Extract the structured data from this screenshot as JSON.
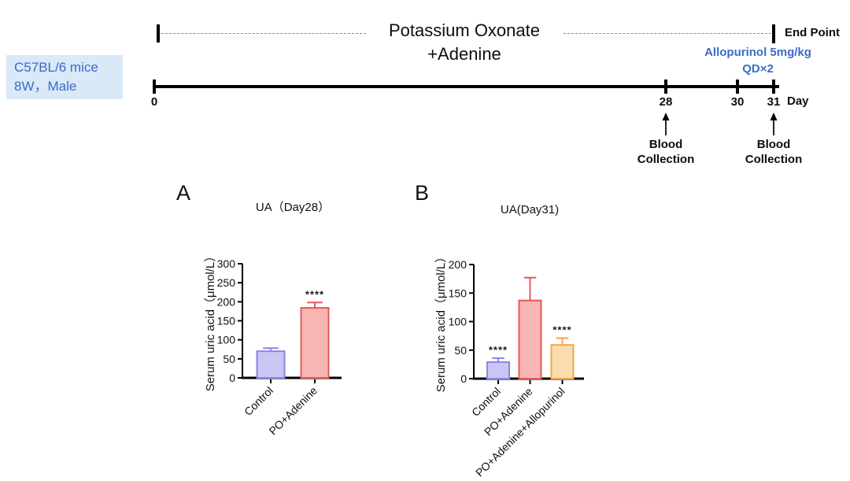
{
  "colors": {
    "accent_blue": "#3a6cc8",
    "box_bg": "#d9e9f8",
    "timeline_black": "#000000",
    "bar_purple_fill": "#c9c6f4",
    "bar_purple_stroke": "#8b86e3",
    "bar_pink_fill": "#f7b5b3",
    "bar_pink_stroke": "#e4585a",
    "bar_orange_fill": "#fbdcae",
    "bar_orange_stroke": "#f2a54c"
  },
  "timeline": {
    "subject_box": {
      "line1": "C57BL/6 mice",
      "line2": "8W，Male"
    },
    "treatment_line1": "Potassium Oxonate",
    "treatment_line2": "+Adenine",
    "end_point_label": "End Point",
    "allopurinol_line1": "Allopurinol 5mg/kg",
    "allopurinol_line2": "QD×2",
    "day_axis_label": "Day",
    "ticks": [
      {
        "day": "0"
      },
      {
        "day": "28"
      },
      {
        "day": "30"
      },
      {
        "day": "31"
      }
    ],
    "blood_collections": [
      {
        "line1": "Blood",
        "line2": "Collection",
        "at_day": "28"
      },
      {
        "line1": "Blood",
        "line2": "Collection",
        "at_day": "31"
      }
    ]
  },
  "chart_data": [
    {
      "type": "bar",
      "panel_label": "A",
      "title": "UA（Day28）",
      "ylabel": "Serum uric acid（μmol/L）",
      "ylim": [
        0,
        300
      ],
      "ytick_step": 50,
      "categories": [
        "Control",
        "PO+Adenine"
      ],
      "values": [
        70,
        184
      ],
      "errors": [
        8,
        14
      ],
      "significance": [
        "",
        "****"
      ],
      "bar_fill": [
        "#c9c6f4",
        "#f7b5b3"
      ],
      "bar_stroke": [
        "#8b86e3",
        "#e4585a"
      ],
      "legend_position": "none",
      "grid": false
    },
    {
      "type": "bar",
      "panel_label": "B",
      "title": "UA(Day31)",
      "ylabel": "Serum uric acid（μmol/L）",
      "ylim": [
        0,
        200
      ],
      "ytick_step": 50,
      "categories": [
        "Control",
        "PO+Adenine",
        "PO+Adenine+Allopurinol"
      ],
      "values": [
        29,
        137,
        59
      ],
      "errors": [
        7,
        40,
        12
      ],
      "significance": [
        "****",
        "",
        "****"
      ],
      "bar_fill": [
        "#c9c6f4",
        "#f7b5b3",
        "#fbdcae"
      ],
      "bar_stroke": [
        "#8b86e3",
        "#e4585a",
        "#f2a54c"
      ],
      "legend_position": "none",
      "grid": false
    }
  ]
}
